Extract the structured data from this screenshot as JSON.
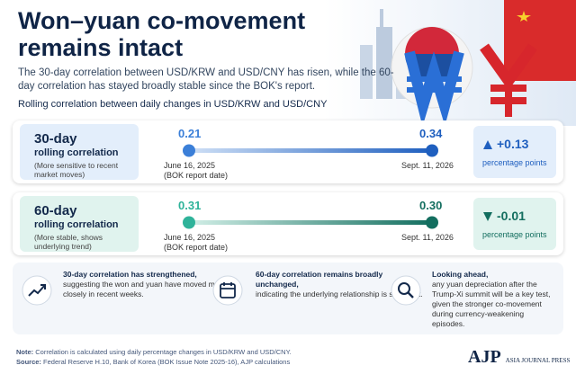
{
  "header": {
    "title": "Won–yuan co-movement remains intact",
    "subtitle": "The 30-day correlation between USD/KRW and USD/CNY has risen, while the 60-day correlation has stayed broadly stable since the BOK's report.",
    "section_label": "Rolling correlation between daily changes in USD/KRW and USD/CNY"
  },
  "rows": [
    {
      "label": "30-day",
      "sublabel": "rolling correlation",
      "note": "(More sensitive to recent market moves)",
      "start_value": "0.21",
      "start_date": "June 16, 2025",
      "start_note": "(BOK report date)",
      "end_value": "0.34",
      "end_date": "Sept. 11, 2026",
      "change": "+0.13",
      "change_unit": "percentage points"
    },
    {
      "label": "60-day",
      "sublabel": "rolling correlation",
      "note": "(More stable, shows underlying trend)",
      "start_value": "0.31",
      "start_date": "June 16, 2025",
      "start_note": "(BOK report date)",
      "end_value": "0.30",
      "end_date": "Sept. 11, 2026",
      "change": "-0.01",
      "change_unit": "percentage points"
    }
  ],
  "insights": [
    {
      "bold": "30-day correlation has strengthened,",
      "text": "suggesting the won and yuan have moved more closely in recent weeks."
    },
    {
      "bold": "60-day correlation remains broadly unchanged,",
      "text": "indicating the underlying relationship is still intact."
    },
    {
      "bold": "Looking ahead,",
      "text": "any yuan depreciation after the Trump-Xi summit will be a key test, given the stronger co-movement during currency-weakening episodes."
    }
  ],
  "footer": {
    "note_label": "Note:",
    "note": "Correlation is calculated using daily percentage changes in USD/KRW and USD/CNY.",
    "source_label": "Source:",
    "source": "Federal Reserve H.10, Bank of Korea (BOK Issue Note 2025-16), AJP calculations"
  },
  "brand": {
    "logo": "AJP",
    "name": "ASIA JOURNAL PRESS"
  }
}
